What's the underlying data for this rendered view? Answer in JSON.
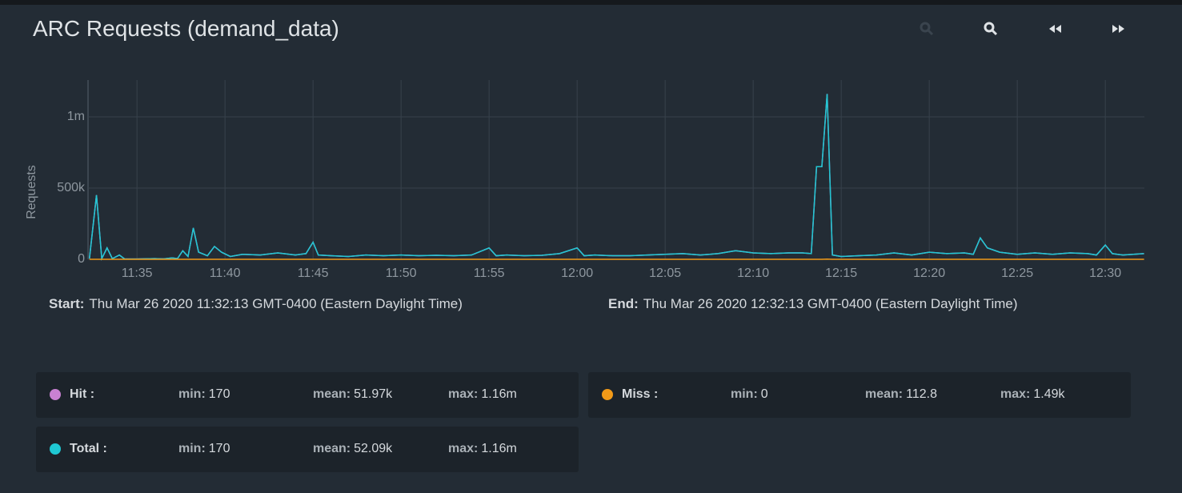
{
  "chart_data": {
    "type": "line",
    "title": "ARC Requests (demand_data)",
    "ylabel": "Requests",
    "x": [
      32.3,
      32.7,
      33.0,
      33.3,
      33.6,
      34.0,
      34.3,
      35,
      36,
      36.5,
      37,
      37.3,
      37.6,
      37.9,
      38.2,
      38.5,
      39,
      39.4,
      39.8,
      40.3,
      41,
      42,
      43,
      44,
      44.6,
      45,
      45.3,
      46,
      47,
      48,
      49,
      50,
      51,
      52,
      53,
      54,
      55,
      55.4,
      56,
      57,
      58,
      59,
      60,
      60.4,
      61,
      62,
      63,
      64,
      65,
      66,
      67,
      68,
      69,
      70,
      71,
      72,
      72.8,
      73.3,
      73.6,
      73.9,
      74.2,
      74.5,
      75,
      76,
      77,
      78,
      79,
      80,
      81,
      82,
      82.5,
      82.9,
      83.3,
      84,
      85,
      86,
      87,
      88,
      89,
      89.5,
      90,
      90.4,
      91,
      91.6,
      92.2
    ],
    "series": [
      {
        "name": "Hit :",
        "color": "#c981d2",
        "stats": [
          "170",
          "51.97k",
          "1.16m"
        ],
        "values": [
          5000,
          450000,
          5000,
          80000,
          5000,
          30000,
          2000,
          2000,
          5000,
          3000,
          10000,
          5000,
          60000,
          20000,
          220000,
          50000,
          25000,
          90000,
          50000,
          20000,
          35000,
          30000,
          45000,
          30000,
          40000,
          120000,
          30000,
          25000,
          20000,
          30000,
          25000,
          30000,
          25000,
          28000,
          25000,
          30000,
          80000,
          25000,
          30000,
          25000,
          28000,
          40000,
          80000,
          25000,
          30000,
          25000,
          25000,
          30000,
          35000,
          40000,
          30000,
          40000,
          60000,
          45000,
          40000,
          45000,
          45000,
          40000,
          650000,
          650000,
          1160000,
          30000,
          20000,
          25000,
          30000,
          45000,
          30000,
          50000,
          40000,
          45000,
          35000,
          150000,
          80000,
          50000,
          35000,
          45000,
          35000,
          45000,
          40000,
          30000,
          100000,
          40000,
          30000,
          35000,
          40000
        ]
      },
      {
        "name": "Miss :",
        "color": "#f29a18",
        "stats": [
          "0",
          "112.8",
          "1.49k"
        ],
        "values": [
          0,
          0,
          0,
          0,
          0,
          0,
          0,
          0,
          0,
          0,
          0,
          0,
          0,
          0,
          0,
          0,
          0,
          0,
          0,
          0,
          0,
          0,
          0,
          0,
          0,
          0,
          0,
          0,
          0,
          0,
          0,
          0,
          0,
          0,
          0,
          0,
          0,
          0,
          0,
          0,
          0,
          0,
          0,
          0,
          0,
          0,
          0,
          0,
          0,
          0,
          0,
          0,
          0,
          0,
          0,
          0,
          0,
          0,
          0,
          0,
          1490,
          0,
          0,
          0,
          0,
          0,
          0,
          0,
          0,
          0,
          0,
          0,
          0,
          0,
          0,
          0,
          0,
          0,
          0,
          0,
          0,
          0,
          0,
          0,
          0
        ]
      },
      {
        "name": "Total :",
        "color": "#1fc8d3",
        "stats": [
          "170",
          "52.09k",
          "1.16m"
        ],
        "values": [
          5000,
          450000,
          5000,
          80000,
          5000,
          30000,
          2000,
          2000,
          5000,
          3000,
          10000,
          5000,
          60000,
          20000,
          220000,
          50000,
          25000,
          90000,
          50000,
          20000,
          35000,
          30000,
          45000,
          30000,
          40000,
          120000,
          30000,
          25000,
          20000,
          30000,
          25000,
          30000,
          25000,
          28000,
          25000,
          30000,
          80000,
          25000,
          30000,
          25000,
          28000,
          40000,
          80000,
          25000,
          30000,
          25000,
          25000,
          30000,
          35000,
          40000,
          30000,
          40000,
          60000,
          45000,
          40000,
          45000,
          45000,
          40000,
          650000,
          650000,
          1160000,
          30000,
          20000,
          25000,
          30000,
          45000,
          30000,
          50000,
          40000,
          45000,
          35000,
          150000,
          80000,
          50000,
          35000,
          45000,
          35000,
          45000,
          40000,
          30000,
          100000,
          40000,
          30000,
          35000,
          40000
        ]
      }
    ],
    "xlim": [
      32.22,
      92.22
    ],
    "xticks": [
      {
        "value": 35,
        "label": "11:35"
      },
      {
        "value": 40,
        "label": "11:40"
      },
      {
        "value": 45,
        "label": "11:45"
      },
      {
        "value": 50,
        "label": "11:50"
      },
      {
        "value": 55,
        "label": "11:55"
      },
      {
        "value": 60,
        "label": "12:00"
      },
      {
        "value": 65,
        "label": "12:05"
      },
      {
        "value": 70,
        "label": "12:10"
      },
      {
        "value": 75,
        "label": "12:15"
      },
      {
        "value": 80,
        "label": "12:20"
      },
      {
        "value": 85,
        "label": "12:25"
      },
      {
        "value": 90,
        "label": "12:30"
      }
    ],
    "ylim": [
      0,
      1258000
    ],
    "yticks": [
      0,
      {
        "value": 500000,
        "label": "500k"
      },
      {
        "value": 1000000,
        "label": "1m"
      }
    ],
    "grid": true,
    "stat_labels": [
      "min:",
      "mean:",
      "max:"
    ],
    "start_label": "Start:",
    "start": "Thu Mar 26 2020 11:32:13 GMT-0400 (Eastern Daylight Time)",
    "end_label": "End:",
    "end": "Thu Mar 26 2020 12:32:13 GMT-0400 (Eastern Daylight Time)"
  }
}
